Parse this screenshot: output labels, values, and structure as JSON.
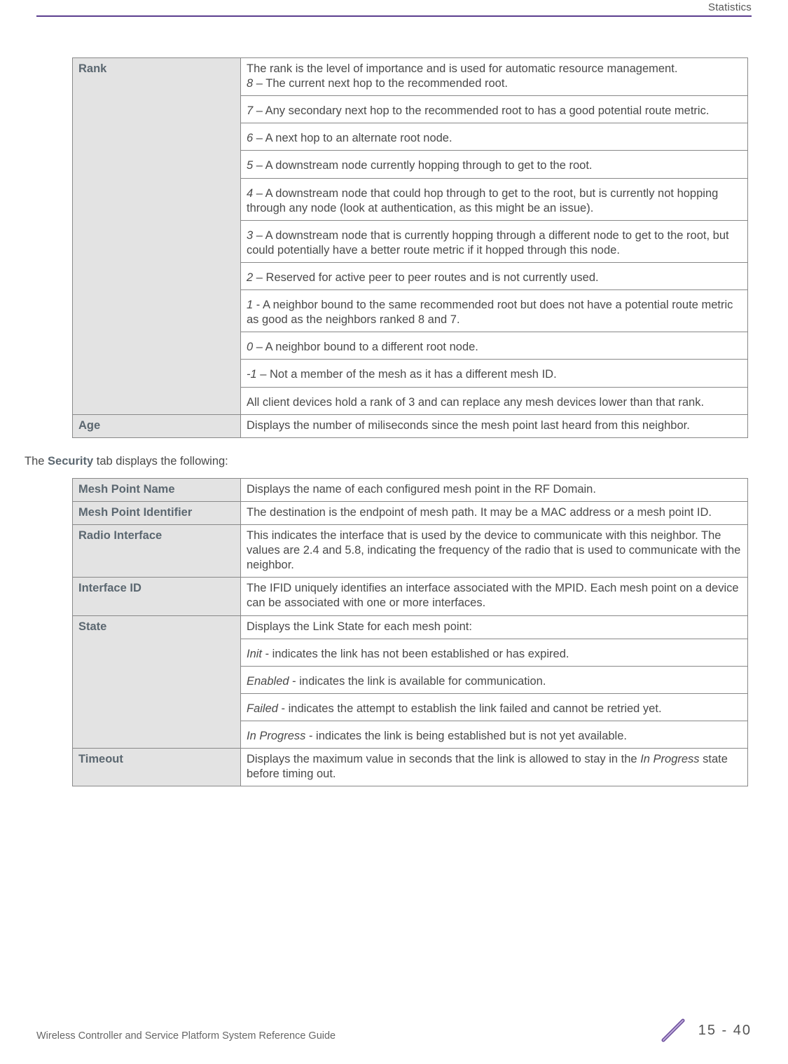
{
  "colors": {
    "accent_rule": "#5b3e8f",
    "header_bg": "#e3e3e3",
    "header_text": "#5b6770",
    "body_text": "#4a4a4a",
    "border": "#888888",
    "footer_text": "#666666"
  },
  "fonts": {
    "body_size_pt": 12,
    "line_height": 1.28
  },
  "page": {
    "header_right": "Statistics",
    "footer_left": "Wireless Controller and Service Platform System Reference Guide",
    "chapter_page": "15 - 40"
  },
  "table1": {
    "rows": [
      {
        "label": "Rank",
        "paras": [
          {
            "lead": "",
            "text": "The rank is the level of importance and is used for automatic resource management."
          },
          {
            "lead": "8",
            "text": " – The current next hop to the recommended root."
          },
          {
            "lead": "7",
            "text": " – Any secondary next hop to the recommended root to has a good potential route metric."
          },
          {
            "lead": "6",
            "text": " – A next hop to an alternate root node."
          },
          {
            "lead": "5",
            "text": " – A downstream node currently hopping through to get to the root."
          },
          {
            "lead": "4",
            "text": " – A downstream node that could hop through to get to the root, but is currently not hopping through any node (look at authentication, as this might be an issue)."
          },
          {
            "lead": "3",
            "text": " – A downstream node that is currently hopping through a different node to get to the root, but could potentially have a better route metric if it hopped through this node."
          },
          {
            "lead": "2",
            "text": " – Reserved for active peer to peer routes and is not currently used."
          },
          {
            "lead": "1",
            "text": " - A neighbor bound to the same recommended root but does not have a potential route metric as good as the neighbors ranked 8 and 7."
          },
          {
            "lead": "0",
            "text": " – A neighbor bound to a different root node."
          },
          {
            "lead": "-1",
            "text": " – Not a member of the mesh as it has a different mesh ID."
          },
          {
            "lead": "",
            "text": "All client devices hold a rank of 3 and can replace any mesh devices lower than that rank."
          }
        ]
      },
      {
        "label": "Age",
        "paras": [
          {
            "lead": "",
            "text": "Displays the number of miliseconds since the mesh point last heard from this neighbor."
          }
        ]
      }
    ]
  },
  "caption": {
    "pre": "The ",
    "bold": "Security",
    "post": " tab displays the following:"
  },
  "table2": {
    "rows": [
      {
        "label": "Mesh Point Name",
        "paras": [
          {
            "lead": "",
            "text": "Displays the name of each configured mesh point in the RF Domain."
          }
        ]
      },
      {
        "label": "Mesh Point Identifier",
        "paras": [
          {
            "lead": "",
            "text": "The destination is the endpoint of mesh path. It may be a MAC address or a mesh point ID."
          }
        ]
      },
      {
        "label": "Radio Interface",
        "paras": [
          {
            "lead": "",
            "text": "This indicates the interface that is used by the device to communicate with this neighbor. The values are 2.4 and 5.8, indicating the frequency of the radio that is used to communicate with the neighbor."
          }
        ]
      },
      {
        "label": "Interface ID",
        "paras": [
          {
            "lead": "",
            "text": "The IFID uniquely identifies an interface associated with the MPID. Each mesh point on a device can be associated with one or more interfaces."
          }
        ]
      },
      {
        "label": "State",
        "paras": [
          {
            "lead": "",
            "text": "Displays the Link State for each mesh point:"
          },
          {
            "lead": "Init",
            "text": " - indicates the link has not been established or has expired."
          },
          {
            "lead": "Enabled",
            "text": " - indicates the link is available for communication."
          },
          {
            "lead": "Failed",
            "text": " - indicates the attempt to establish the link failed and cannot be retried yet."
          },
          {
            "lead": "In Progress",
            "text": " - indicates the link is being established but is not yet available."
          }
        ]
      },
      {
        "label": "Timeout",
        "paras": [
          {
            "lead": "",
            "text_pre": "Displays the maximum value in seconds that the link is allowed to stay in the ",
            "italic_mid": "In Progress",
            "text_post": " state before timing out."
          }
        ]
      }
    ]
  }
}
